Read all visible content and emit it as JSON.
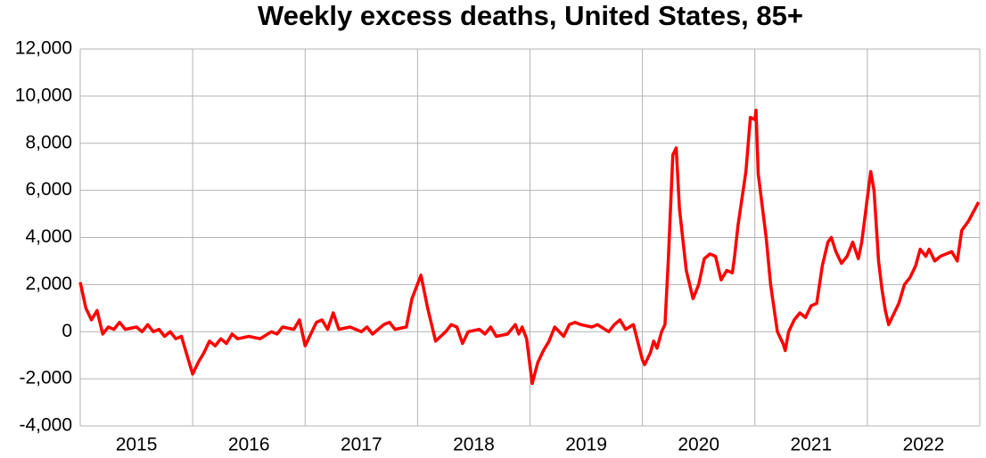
{
  "chart_data": {
    "type": "line",
    "title": "Weekly excess deaths, United States, 85+",
    "series": [
      {
        "name": "85+",
        "color": "#ff0000",
        "x": [
          2015.0,
          2015.05,
          2015.1,
          2015.15,
          2015.2,
          2015.25,
          2015.3,
          2015.35,
          2015.4,
          2015.5,
          2015.55,
          2015.6,
          2015.65,
          2015.7,
          2015.75,
          2015.8,
          2015.85,
          2015.9,
          2015.95,
          2016.0,
          2016.05,
          2016.1,
          2016.15,
          2016.2,
          2016.25,
          2016.3,
          2016.35,
          2016.4,
          2016.5,
          2016.6,
          2016.7,
          2016.75,
          2016.8,
          2016.9,
          2016.95,
          2017.0,
          2017.05,
          2017.1,
          2017.15,
          2017.2,
          2017.25,
          2017.3,
          2017.4,
          2017.5,
          2017.55,
          2017.6,
          2017.7,
          2017.75,
          2017.8,
          2017.9,
          2017.95,
          2018.03,
          2018.09,
          2018.13,
          2018.16,
          2018.25,
          2018.3,
          2018.35,
          2018.4,
          2018.45,
          2018.55,
          2018.6,
          2018.65,
          2018.7,
          2018.8,
          2018.87,
          2018.9,
          2018.93,
          2018.97,
          2019.02,
          2019.07,
          2019.12,
          2019.17,
          2019.22,
          2019.3,
          2019.35,
          2019.4,
          2019.45,
          2019.55,
          2019.6,
          2019.7,
          2019.75,
          2019.8,
          2019.85,
          2019.92,
          2020.0,
          2020.02,
          2020.07,
          2020.1,
          2020.13,
          2020.17,
          2020.2,
          2020.23,
          2020.27,
          2020.3,
          2020.33,
          2020.39,
          2020.45,
          2020.5,
          2020.55,
          2020.6,
          2020.65,
          2020.7,
          2020.75,
          2020.8,
          2020.82,
          2020.85,
          2020.92,
          2020.96,
          2021.0,
          2021.01,
          2021.03,
          2021.1,
          2021.14,
          2021.2,
          2021.25,
          2021.27,
          2021.3,
          2021.35,
          2021.4,
          2021.45,
          2021.5,
          2021.55,
          2021.6,
          2021.65,
          2021.68,
          2021.72,
          2021.77,
          2021.82,
          2021.87,
          2021.92,
          2021.95,
          2022.03,
          2022.06,
          2022.1,
          2022.13,
          2022.16,
          2022.19,
          2022.24,
          2022.28,
          2022.33,
          2022.38,
          2022.43,
          2022.47,
          2022.52,
          2022.55,
          2022.6,
          2022.65,
          2022.75,
          2022.8,
          2022.84,
          2022.9,
          2022.99
        ],
        "values": [
          2100,
          1000,
          500,
          900,
          -100,
          200,
          100,
          400,
          100,
          200,
          0,
          300,
          0,
          100,
          -200,
          0,
          -300,
          -200,
          -1000,
          -1800,
          -1300,
          -900,
          -400,
          -600,
          -300,
          -500,
          -100,
          -300,
          -200,
          -300,
          0,
          -100,
          200,
          100,
          500,
          -600,
          -100,
          400,
          500,
          100,
          800,
          100,
          200,
          0,
          200,
          -100,
          300,
          400,
          100,
          200,
          1400,
          2400,
          1000,
          200,
          -400,
          0,
          300,
          200,
          -500,
          0,
          100,
          -100,
          200,
          -200,
          -100,
          300,
          -100,
          200,
          -300,
          -2200,
          -1300,
          -800,
          -400,
          200,
          -200,
          300,
          400,
          300,
          200,
          300,
          0,
          300,
          500,
          100,
          300,
          -1200,
          -1400,
          -900,
          -400,
          -700,
          0,
          300,
          3000,
          7500,
          7800,
          5200,
          2600,
          1400,
          2000,
          3100,
          3300,
          3200,
          2200,
          2600,
          2500,
          3200,
          4500,
          6800,
          9100,
          9000,
          9400,
          6700,
          4000,
          2000,
          0,
          -500,
          -800,
          0,
          500,
          800,
          600,
          1100,
          1200,
          2800,
          3800,
          4000,
          3400,
          2900,
          3200,
          3800,
          3100,
          3800,
          6800,
          6000,
          3000,
          1800,
          900,
          300,
          800,
          1200,
          2000,
          2300,
          2800,
          3500,
          3200,
          3500,
          3000,
          3200,
          3400,
          3000,
          4300,
          4700,
          5500
        ]
      }
    ],
    "xlim": [
      2015,
      2023
    ],
    "xticks": [
      {
        "value": 2015.5,
        "label": "2015"
      },
      {
        "value": 2016.5,
        "label": "2016"
      },
      {
        "value": 2017.5,
        "label": "2017"
      },
      {
        "value": 2018.5,
        "label": "2018"
      },
      {
        "value": 2019.5,
        "label": "2019"
      },
      {
        "value": 2020.5,
        "label": "2020"
      },
      {
        "value": 2021.5,
        "label": "2021"
      },
      {
        "value": 2022.5,
        "label": "2022"
      }
    ],
    "xgrid": [
      2016,
      2017,
      2018,
      2019,
      2020,
      2021,
      2022
    ],
    "ylim": [
      -4000,
      12000
    ],
    "yticks": [
      {
        "value": -4000,
        "label": "-4,000"
      },
      {
        "value": -2000,
        "label": "-2,000"
      },
      0,
      {
        "value": 2000,
        "label": "2,000"
      },
      {
        "value": 4000,
        "label": "4,000"
      },
      {
        "value": 6000,
        "label": "6,000"
      },
      {
        "value": 8000,
        "label": "8,000"
      },
      {
        "value": 10000,
        "label": "10,000"
      },
      {
        "value": 12000,
        "label": "12,000"
      }
    ],
    "grid": true
  }
}
